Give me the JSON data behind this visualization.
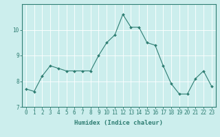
{
  "x": [
    0,
    1,
    2,
    3,
    4,
    5,
    6,
    7,
    8,
    9,
    10,
    11,
    12,
    13,
    14,
    15,
    16,
    17,
    18,
    19,
    20,
    21,
    22,
    23
  ],
  "y": [
    7.7,
    7.6,
    8.2,
    8.6,
    8.5,
    8.4,
    8.4,
    8.4,
    8.4,
    9.0,
    9.5,
    9.8,
    10.6,
    10.1,
    10.1,
    9.5,
    9.4,
    8.6,
    7.9,
    7.5,
    7.5,
    8.1,
    8.4,
    7.8
  ],
  "line_color": "#2e7d72",
  "marker": "D",
  "marker_size": 2.0,
  "bg_color": "#cceeed",
  "grid_color": "#ffffff",
  "xlabel": "Humidex (Indice chaleur)",
  "ylim": [
    7.0,
    11.0
  ],
  "xlim": [
    -0.5,
    23.5
  ],
  "yticks": [
    7,
    8,
    9,
    10
  ],
  "xticks": [
    0,
    1,
    2,
    3,
    4,
    5,
    6,
    7,
    8,
    9,
    10,
    11,
    12,
    13,
    14,
    15,
    16,
    17,
    18,
    19,
    20,
    21,
    22,
    23
  ],
  "tick_label_fontsize": 5.5,
  "xlabel_fontsize": 6.5,
  "spine_color": "#2e7d72",
  "tick_color": "#2e7d72",
  "linewidth": 0.8
}
